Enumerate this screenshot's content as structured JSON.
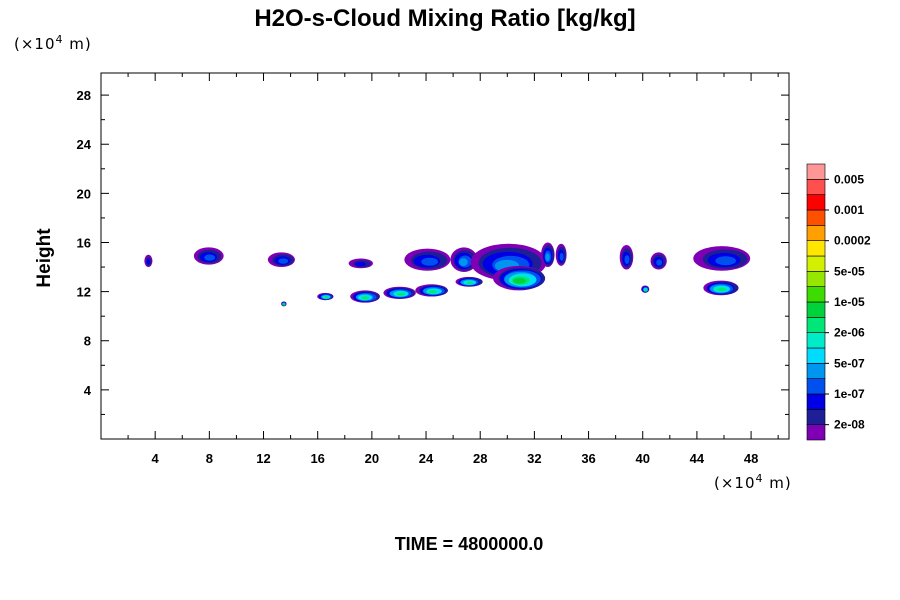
{
  "chart_data": {
    "type": "heatmap",
    "title": "H2O-s-Cloud Mixing Ratio [kg/kg]",
    "ylabel": "Height",
    "x_unit": "(×10",
    "x_unit_exp": "4",
    "x_unit_tail": " m)",
    "y_unit": "(×10",
    "y_unit_exp": "4",
    "y_unit_tail": " m)",
    "time_label": "TIME = 4800000.0",
    "xlim": [
      0,
      50.8
    ],
    "ylim": [
      0,
      29.8
    ],
    "x_ticks": [
      4,
      8,
      12,
      16,
      20,
      24,
      28,
      32,
      36,
      40,
      44,
      48
    ],
    "x_tick_labels": [
      "4",
      "8",
      "12",
      "16",
      "20",
      "24",
      "28",
      "32",
      "36",
      "40",
      "44",
      "48"
    ],
    "y_ticks": [
      4,
      8,
      12,
      16,
      20,
      24,
      28
    ],
    "y_tick_labels": [
      "4",
      "8",
      "12",
      "16",
      "20",
      "24",
      "28"
    ],
    "grid": false,
    "colorbar": {
      "placement": "right",
      "colors": [
        "#7f00b4",
        "#1e1e96",
        "#0000e6",
        "#0050f0",
        "#0096f0",
        "#00dcff",
        "#00ebc8",
        "#00e678",
        "#00d23c",
        "#3cdc00",
        "#96e600",
        "#d2f000",
        "#ffe600",
        "#ffa000",
        "#ff5000",
        "#ff0000",
        "#ff5050",
        "#ff9696"
      ],
      "labels": [
        "2e-08",
        "1e-07",
        "5e-07",
        "2e-06",
        "1e-05",
        "5e-05",
        "0.0002",
        "0.001",
        "0.005"
      ]
    },
    "clouds": [
      {
        "x": 3.5,
        "y": 14.5,
        "rx": 0.3,
        "ry": 0.5,
        "level": 2
      },
      {
        "x": 8.0,
        "y": 14.9,
        "rx": 1.1,
        "ry": 0.7,
        "level": 3
      },
      {
        "x": 13.4,
        "y": 14.6,
        "rx": 1.0,
        "ry": 0.6,
        "level": 3
      },
      {
        "x": 19.2,
        "y": 14.3,
        "rx": 0.9,
        "ry": 0.4,
        "level": 2
      },
      {
        "x": 24.2,
        "y": 14.6,
        "rx": 1.7,
        "ry": 0.9,
        "level": 3
      },
      {
        "x": 26.8,
        "y": 14.6,
        "rx": 1.0,
        "ry": 1.0,
        "level": 4
      },
      {
        "x": 30.2,
        "y": 14.4,
        "rx": 2.8,
        "ry": 1.5,
        "level": 4
      },
      {
        "x": 31.0,
        "y": 13.1,
        "rx": 1.9,
        "ry": 1.0,
        "level": 8
      },
      {
        "x": 33.0,
        "y": 15.0,
        "rx": 0.5,
        "ry": 1.0,
        "level": 4
      },
      {
        "x": 34.0,
        "y": 15.0,
        "rx": 0.4,
        "ry": 0.9,
        "level": 3
      },
      {
        "x": 38.8,
        "y": 14.8,
        "rx": 0.5,
        "ry": 1.0,
        "level": 3
      },
      {
        "x": 41.2,
        "y": 14.5,
        "rx": 0.6,
        "ry": 0.7,
        "level": 3
      },
      {
        "x": 46.0,
        "y": 14.7,
        "rx": 2.1,
        "ry": 1.0,
        "level": 3
      },
      {
        "x": 45.8,
        "y": 12.3,
        "rx": 1.3,
        "ry": 0.6,
        "level": 7
      },
      {
        "x": 16.6,
        "y": 11.6,
        "rx": 0.6,
        "ry": 0.3,
        "level": 7
      },
      {
        "x": 19.5,
        "y": 11.6,
        "rx": 1.1,
        "ry": 0.5,
        "level": 7
      },
      {
        "x": 22.1,
        "y": 11.9,
        "rx": 1.2,
        "ry": 0.5,
        "level": 7
      },
      {
        "x": 24.5,
        "y": 12.1,
        "rx": 1.2,
        "ry": 0.5,
        "level": 7
      },
      {
        "x": 27.2,
        "y": 12.8,
        "rx": 1.0,
        "ry": 0.4,
        "level": 7
      },
      {
        "x": 40.2,
        "y": 12.2,
        "rx": 0.3,
        "ry": 0.3,
        "level": 7
      },
      {
        "x": 13.5,
        "y": 11.0,
        "rx": 0.2,
        "ry": 0.2,
        "level": 8
      }
    ]
  }
}
